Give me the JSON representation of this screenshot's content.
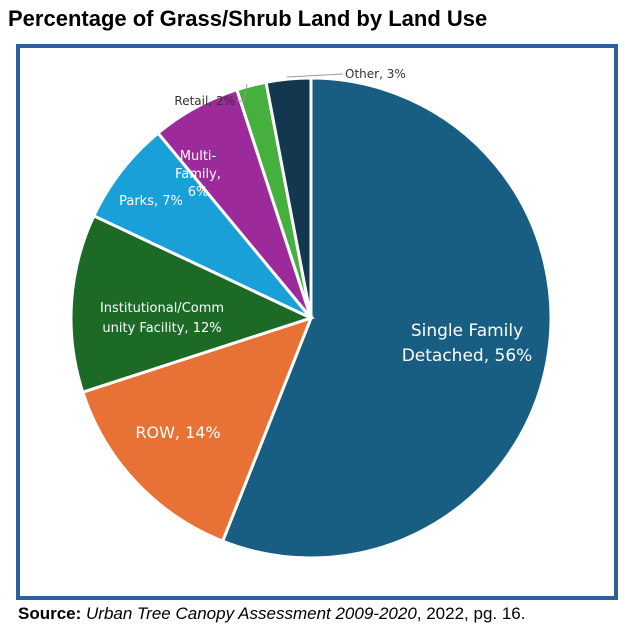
{
  "chart_data": {
    "type": "pie",
    "title": "Percentage of Grass/Shrub Land by Land Use",
    "start_angle": "top, clockwise",
    "slices": [
      {
        "label": "Single Family Detached",
        "value": 56,
        "color": "#175e82",
        "label_lines": [
          "Single Family",
          "Detached, 56%"
        ]
      },
      {
        "label": "ROW",
        "value": 14,
        "color": "#e87236",
        "label_lines": [
          "ROW, 14%"
        ]
      },
      {
        "label": "Institutional/Community Facility",
        "value": 12,
        "color": "#1c6a26",
        "label_lines": [
          "Institutional/Comm",
          "unity Facility, 12%"
        ]
      },
      {
        "label": "Parks",
        "value": 7,
        "color": "#1aa0d8",
        "label_lines": [
          "Parks, 7%"
        ]
      },
      {
        "label": "Multi-Family",
        "value": 6,
        "color": "#9c2a9a",
        "label_lines": [
          "Multi-",
          "Family,",
          "6%"
        ]
      },
      {
        "label": "Retail",
        "value": 2,
        "color": "#46b03e",
        "label_lines": [
          "Retail, 2%"
        ]
      },
      {
        "label": "Other",
        "value": 3,
        "color": "#12374f",
        "label_lines": [
          "Other, 3%"
        ]
      }
    ]
  },
  "source": {
    "prefix": "Source:",
    "work": "Urban Tree Canopy Assessment 2009-2020",
    "suffix": ", 2022, pg. 16."
  },
  "frame_color": "#2e5f9a"
}
